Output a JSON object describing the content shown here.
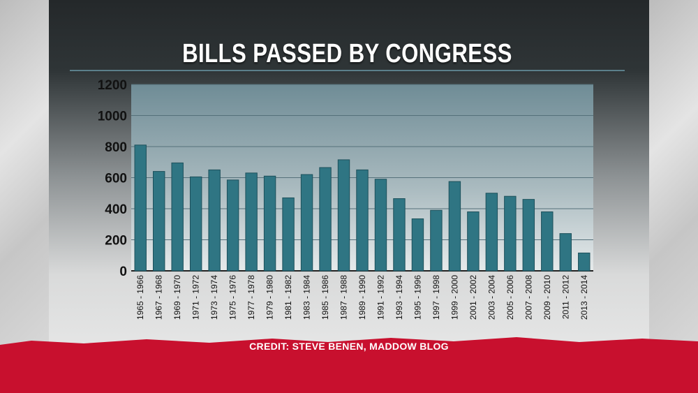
{
  "title": "BILLS PASSED BY CONGRESS",
  "credit": "CREDIT: STEVE BENEN, MADDOW BLOG",
  "colors": {
    "bar": "#2f7583",
    "bar_edge": "#1d505b",
    "accent_red": "#c8102e"
  },
  "chart_data": {
    "type": "bar",
    "title": "BILLS PASSED BY CONGRESS",
    "xlabel": "",
    "ylabel": "",
    "ylim": [
      0,
      1200
    ],
    "yticks": [
      0,
      200,
      400,
      600,
      800,
      1000,
      1200
    ],
    "grid": true,
    "categories": [
      "1965 - 1966",
      "1967 - 1968",
      "1969 - 1970",
      "1971 - 1972",
      "1973 - 1974",
      "1975 - 1976",
      "1977 - 1978",
      "1979 - 1980",
      "1981 - 1982",
      "1983 - 1984",
      "1985 - 1986",
      "1987 - 1988",
      "1989 - 1990",
      "1991 - 1992",
      "1993 - 1994",
      "1995 - 1996",
      "1997 - 1998",
      "1999 - 2000",
      "2001 - 2002",
      "2003 - 2004",
      "2005 - 2006",
      "2007 - 2008",
      "2009 - 2010",
      "2011 - 2012",
      "2013 - 2014"
    ],
    "values": [
      810,
      640,
      695,
      605,
      650,
      585,
      630,
      610,
      470,
      620,
      665,
      715,
      650,
      590,
      465,
      335,
      390,
      575,
      380,
      500,
      480,
      460,
      380,
      240,
      115
    ]
  }
}
